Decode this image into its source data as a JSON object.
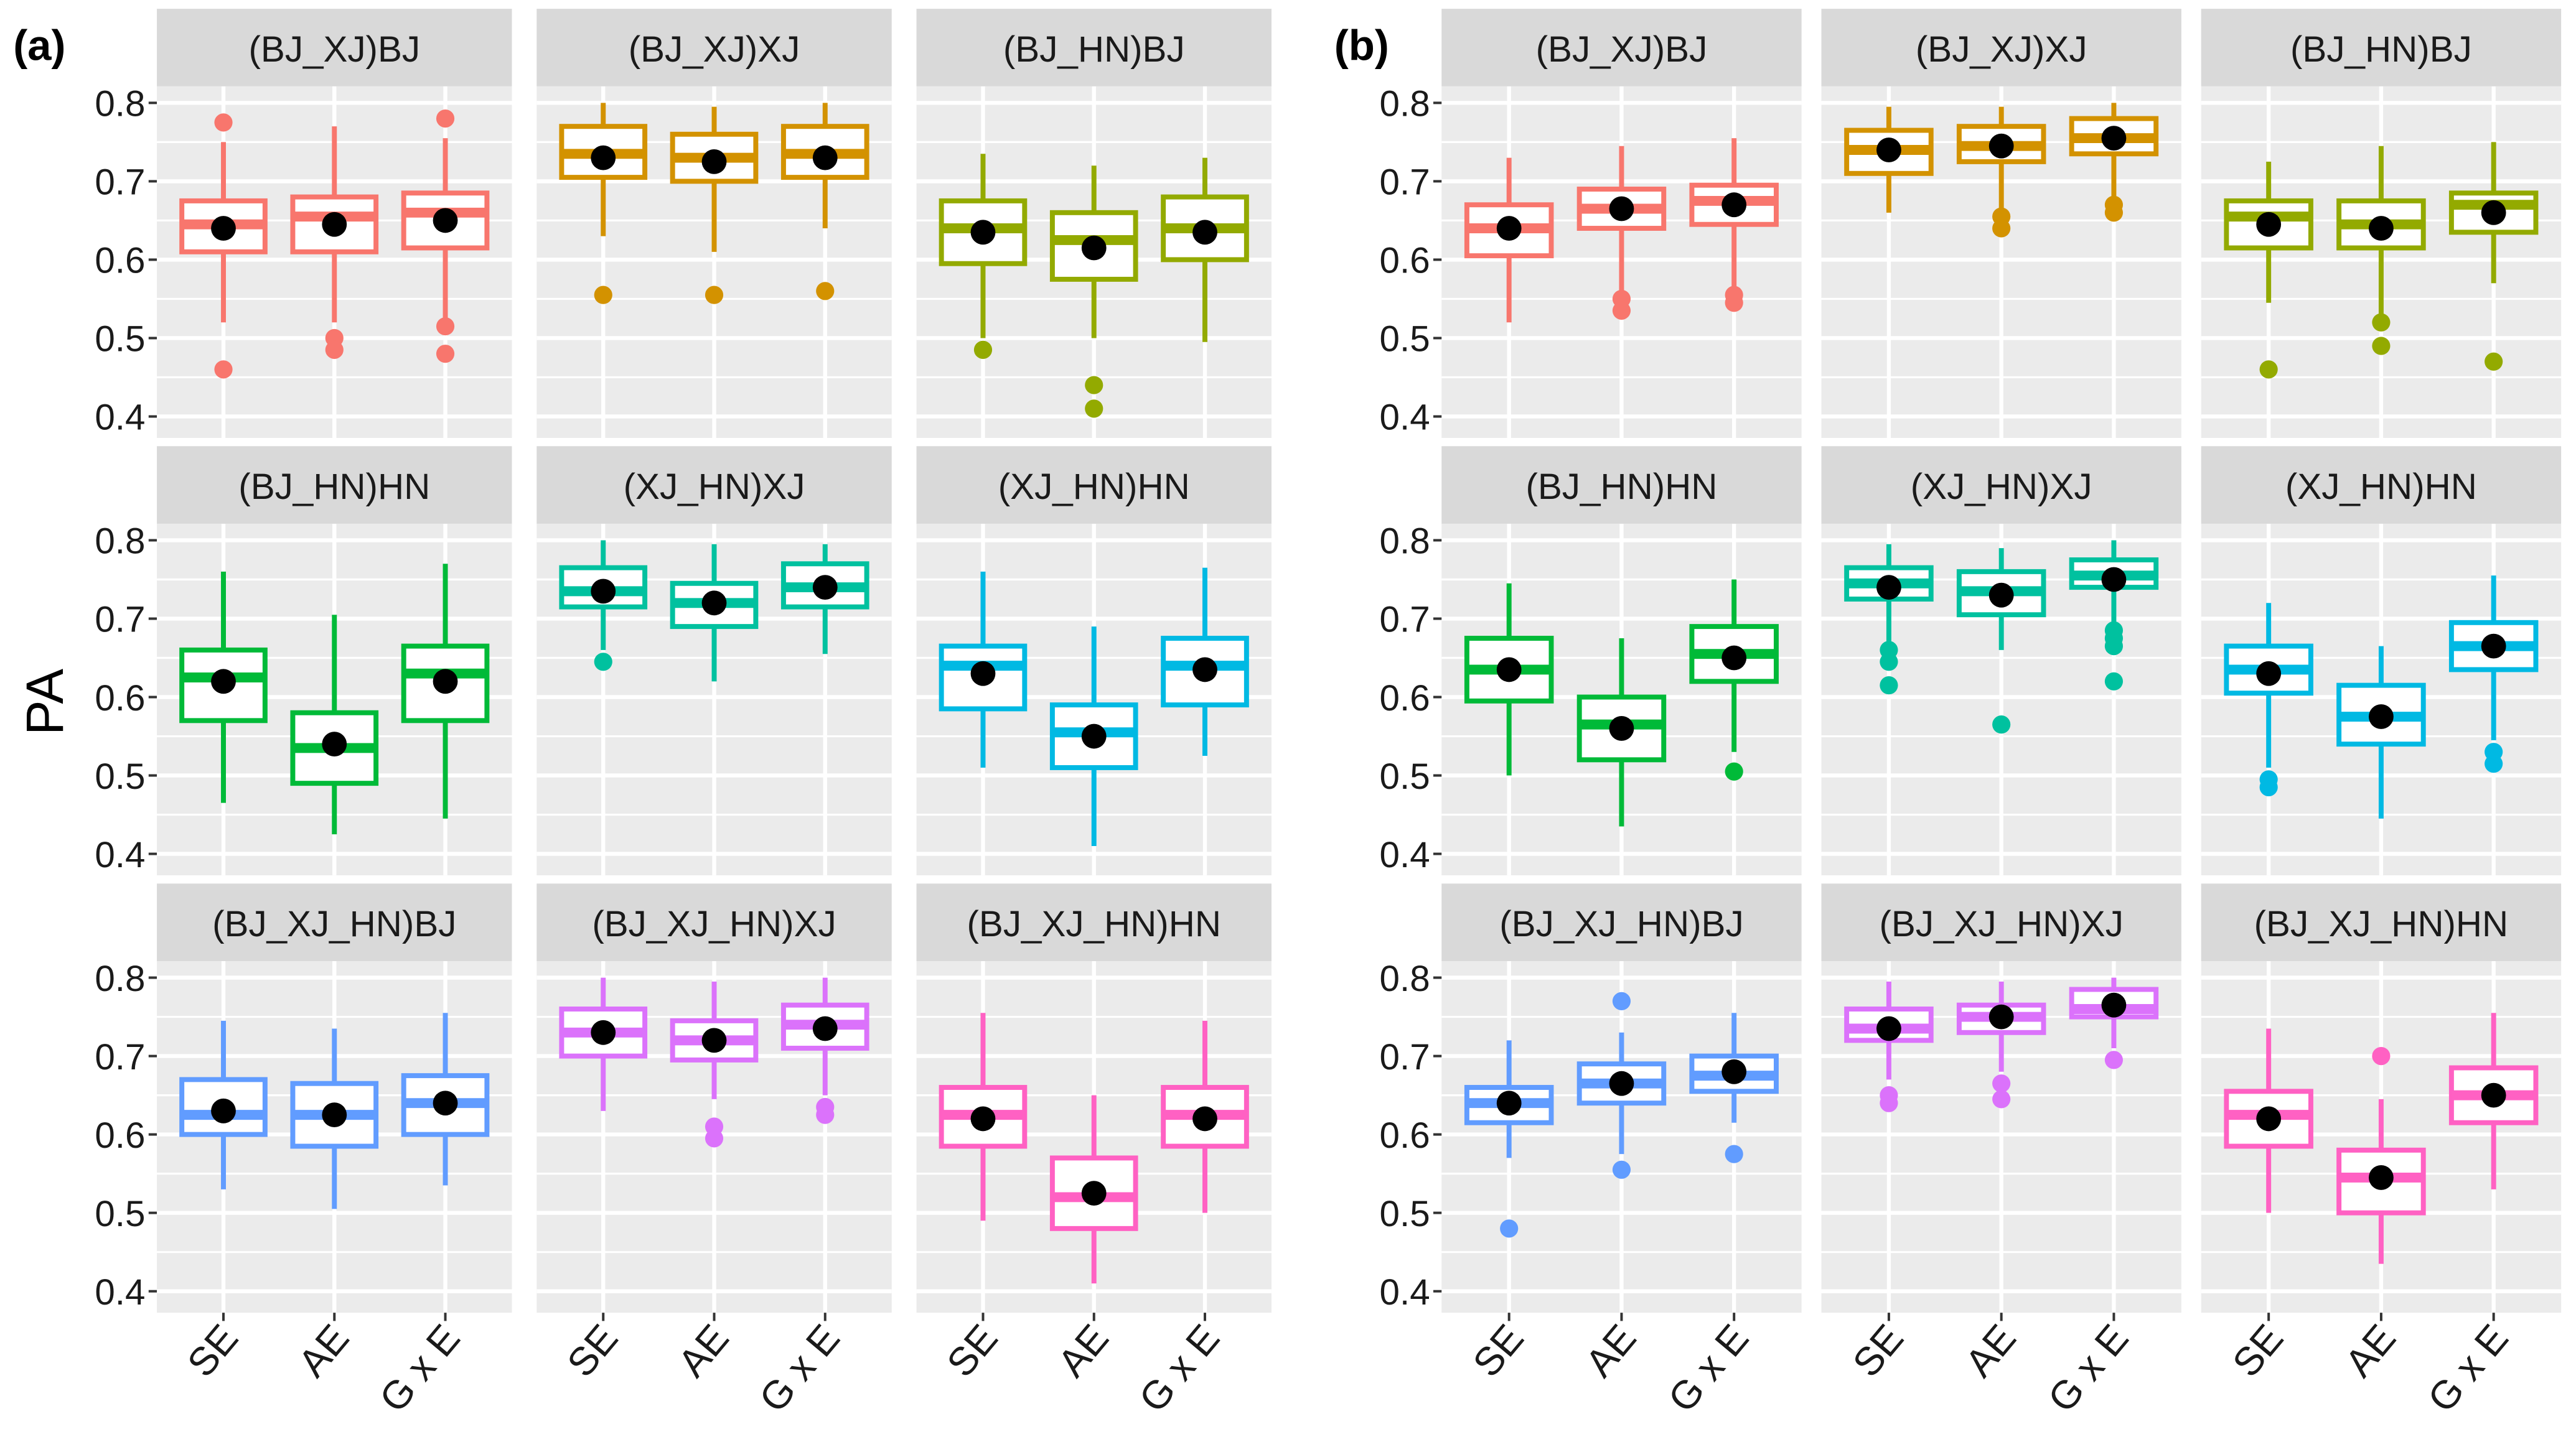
{
  "chart_data": {
    "type": "boxplot",
    "ylabel": "PA",
    "ylim": [
      0.38,
      0.82
    ],
    "yticks": [
      "0.4",
      "0.5",
      "0.6",
      "0.7",
      "0.8"
    ],
    "categories": [
      "SE",
      "AE",
      "G x E"
    ],
    "box_fields": [
      "whisker_low",
      "q1",
      "median",
      "q3",
      "whisker_high",
      "mean",
      "outliers"
    ],
    "colors": [
      "#F8766D",
      "#D39200",
      "#93AA00",
      "#00BA38",
      "#00C19F",
      "#00B9E3",
      "#619CFF",
      "#DB72FB",
      "#FF61C3"
    ],
    "panels": [
      {
        "label": "(a)",
        "facets": [
          {
            "title": "(BJ_XJ)BJ",
            "boxes": [
              [
                0.52,
                0.61,
                0.645,
                0.675,
                0.75,
                0.64,
                [
                  0.775,
                  0.46
                ]
              ],
              [
                0.52,
                0.61,
                0.655,
                0.68,
                0.77,
                0.645,
                [
                  0.5,
                  0.485
                ]
              ],
              [
                0.525,
                0.615,
                0.66,
                0.685,
                0.755,
                0.65,
                [
                  0.78,
                  0.515,
                  0.48
                ]
              ]
            ]
          },
          {
            "title": "(BJ_XJ)XJ",
            "boxes": [
              [
                0.63,
                0.705,
                0.735,
                0.77,
                0.8,
                0.73,
                [
                  0.555
                ]
              ],
              [
                0.61,
                0.7,
                0.73,
                0.76,
                0.795,
                0.725,
                [
                  0.555
                ]
              ],
              [
                0.64,
                0.705,
                0.735,
                0.77,
                0.8,
                0.73,
                [
                  0.56
                ]
              ]
            ]
          },
          {
            "title": "(BJ_HN)BJ",
            "boxes": [
              [
                0.5,
                0.595,
                0.64,
                0.675,
                0.735,
                0.635,
                [
                  0.485
                ]
              ],
              [
                0.5,
                0.575,
                0.625,
                0.66,
                0.72,
                0.615,
                [
                  0.44,
                  0.41
                ]
              ],
              [
                0.495,
                0.6,
                0.64,
                0.68,
                0.73,
                0.635,
                []
              ]
            ]
          },
          {
            "title": "(BJ_HN)HN",
            "boxes": [
              [
                0.465,
                0.57,
                0.625,
                0.66,
                0.76,
                0.62,
                []
              ],
              [
                0.425,
                0.49,
                0.535,
                0.58,
                0.705,
                0.54,
                []
              ],
              [
                0.445,
                0.57,
                0.63,
                0.665,
                0.77,
                0.62,
                []
              ]
            ]
          },
          {
            "title": "(XJ_HN)XJ",
            "boxes": [
              [
                0.66,
                0.715,
                0.735,
                0.765,
                0.8,
                0.735,
                [
                  0.645
                ]
              ],
              [
                0.62,
                0.69,
                0.72,
                0.745,
                0.795,
                0.72,
                []
              ],
              [
                0.655,
                0.715,
                0.74,
                0.77,
                0.795,
                0.74,
                []
              ]
            ]
          },
          {
            "title": "(XJ_HN)HN",
            "boxes": [
              [
                0.51,
                0.585,
                0.64,
                0.665,
                0.76,
                0.63,
                []
              ],
              [
                0.41,
                0.51,
                0.555,
                0.59,
                0.69,
                0.55,
                []
              ],
              [
                0.525,
                0.59,
                0.64,
                0.675,
                0.765,
                0.635,
                []
              ]
            ]
          },
          {
            "title": "(BJ_XJ_HN)BJ",
            "boxes": [
              [
                0.53,
                0.6,
                0.625,
                0.67,
                0.745,
                0.63,
                []
              ],
              [
                0.505,
                0.585,
                0.625,
                0.665,
                0.735,
                0.625,
                []
              ],
              [
                0.535,
                0.6,
                0.64,
                0.675,
                0.755,
                0.64,
                []
              ]
            ]
          },
          {
            "title": "(BJ_XJ_HN)XJ",
            "boxes": [
              [
                0.63,
                0.7,
                0.73,
                0.76,
                0.8,
                0.73,
                []
              ],
              [
                0.645,
                0.695,
                0.72,
                0.745,
                0.795,
                0.72,
                [
                  0.61,
                  0.595
                ]
              ],
              [
                0.65,
                0.71,
                0.74,
                0.765,
                0.8,
                0.735,
                [
                  0.635,
                  0.625
                ]
              ]
            ]
          },
          {
            "title": "(BJ_XJ_HN)HN",
            "boxes": [
              [
                0.49,
                0.585,
                0.625,
                0.66,
                0.755,
                0.62,
                []
              ],
              [
                0.41,
                0.48,
                0.52,
                0.57,
                0.65,
                0.525,
                []
              ],
              [
                0.5,
                0.585,
                0.625,
                0.66,
                0.745,
                0.62,
                []
              ]
            ]
          }
        ]
      },
      {
        "label": "(b)",
        "facets": [
          {
            "title": "(BJ_XJ)BJ",
            "boxes": [
              [
                0.52,
                0.605,
                0.64,
                0.67,
                0.73,
                0.64,
                []
              ],
              [
                0.56,
                0.64,
                0.665,
                0.69,
                0.745,
                0.665,
                [
                  0.55,
                  0.535
                ]
              ],
              [
                0.565,
                0.645,
                0.675,
                0.695,
                0.755,
                0.67,
                [
                  0.555,
                  0.545
                ]
              ]
            ]
          },
          {
            "title": "(BJ_XJ)XJ",
            "boxes": [
              [
                0.66,
                0.71,
                0.74,
                0.765,
                0.795,
                0.74,
                []
              ],
              [
                0.66,
                0.725,
                0.745,
                0.77,
                0.795,
                0.745,
                [
                  0.655,
                  0.64
                ]
              ],
              [
                0.68,
                0.735,
                0.755,
                0.78,
                0.8,
                0.755,
                [
                  0.67,
                  0.66
                ]
              ]
            ]
          },
          {
            "title": "(BJ_HN)BJ",
            "boxes": [
              [
                0.545,
                0.615,
                0.655,
                0.675,
                0.725,
                0.645,
                [
                  0.46
                ]
              ],
              [
                0.53,
                0.615,
                0.645,
                0.675,
                0.745,
                0.64,
                [
                  0.52,
                  0.49
                ]
              ],
              [
                0.57,
                0.635,
                0.67,
                0.685,
                0.75,
                0.66,
                [
                  0.47
                ]
              ]
            ]
          },
          {
            "title": "(BJ_HN)HN",
            "boxes": [
              [
                0.5,
                0.595,
                0.635,
                0.675,
                0.745,
                0.635,
                []
              ],
              [
                0.435,
                0.52,
                0.565,
                0.6,
                0.675,
                0.56,
                []
              ],
              [
                0.53,
                0.62,
                0.655,
                0.69,
                0.75,
                0.65,
                [
                  0.505
                ]
              ]
            ]
          },
          {
            "title": "(XJ_HN)XJ",
            "boxes": [
              [
                0.67,
                0.725,
                0.745,
                0.765,
                0.795,
                0.74,
                [
                  0.66,
                  0.645,
                  0.615
                ]
              ],
              [
                0.66,
                0.705,
                0.735,
                0.76,
                0.79,
                0.73,
                [
                  0.565
                ]
              ],
              [
                0.695,
                0.74,
                0.755,
                0.775,
                0.8,
                0.75,
                [
                  0.685,
                  0.675,
                  0.665,
                  0.62
                ]
              ]
            ]
          },
          {
            "title": "(XJ_HN)HN",
            "boxes": [
              [
                0.51,
                0.605,
                0.635,
                0.665,
                0.72,
                0.63,
                [
                  0.495,
                  0.485
                ]
              ],
              [
                0.445,
                0.54,
                0.575,
                0.615,
                0.665,
                0.575,
                []
              ],
              [
                0.545,
                0.635,
                0.665,
                0.695,
                0.755,
                0.665,
                [
                  0.53,
                  0.515
                ]
              ]
            ]
          },
          {
            "title": "(BJ_XJ_HN)BJ",
            "boxes": [
              [
                0.57,
                0.615,
                0.64,
                0.66,
                0.72,
                0.64,
                [
                  0.48
                ]
              ],
              [
                0.575,
                0.64,
                0.665,
                0.69,
                0.73,
                0.665,
                [
                  0.77,
                  0.555
                ]
              ],
              [
                0.615,
                0.655,
                0.675,
                0.7,
                0.755,
                0.68,
                [
                  0.575
                ]
              ]
            ]
          },
          {
            "title": "(BJ_XJ_HN)XJ",
            "boxes": [
              [
                0.67,
                0.72,
                0.735,
                0.76,
                0.795,
                0.735,
                [
                  0.65,
                  0.64
                ]
              ],
              [
                0.68,
                0.73,
                0.75,
                0.765,
                0.795,
                0.75,
                [
                  0.665,
                  0.645
                ]
              ],
              [
                0.71,
                0.75,
                0.76,
                0.785,
                0.8,
                0.765,
                [
                  0.695
                ]
              ]
            ]
          },
          {
            "title": "(BJ_XJ_HN)HN",
            "boxes": [
              [
                0.5,
                0.585,
                0.625,
                0.655,
                0.735,
                0.62,
                []
              ],
              [
                0.435,
                0.5,
                0.545,
                0.58,
                0.645,
                0.545,
                [
                  0.7
                ]
              ],
              [
                0.53,
                0.615,
                0.65,
                0.685,
                0.755,
                0.65,
                []
              ]
            ]
          }
        ]
      }
    ]
  }
}
